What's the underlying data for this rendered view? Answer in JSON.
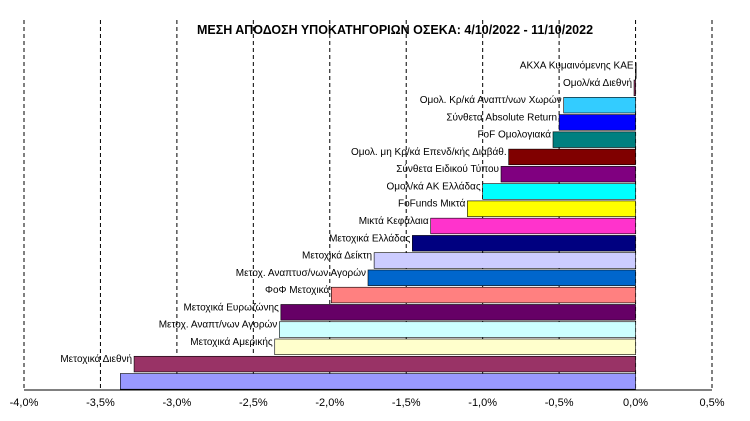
{
  "chart_data": {
    "type": "bar",
    "orientation": "horizontal",
    "title": "ΜΕΣΗ ΑΠΟΔΟΣΗ ΥΠΟΚΑΤΗΓΟΡΙΩΝ  ΟΣΕΚΑ:  4/10/2022  - 11/10/2022",
    "xlabel": "",
    "ylabel": "",
    "xlim": [
      -4.0,
      0.5
    ],
    "x_ticks": [
      "-4,0%",
      "-3,5%",
      "-3,0%",
      "-2,5%",
      "-2,0%",
      "-1,5%",
      "-1,0%",
      "-0,5%",
      "0,0%",
      "0,5%"
    ],
    "grid": "vertical-dashed",
    "legend": "none",
    "categories": [
      {
        "label": "ΑΚΧΑ Κυμαινόμενης ΚΑΕ",
        "value": 0.0,
        "color": "#9999ff"
      },
      {
        "label": "Ομολ/κά Διεθνή",
        "value": -0.01,
        "color": "#993366"
      },
      {
        "label": "Ομολ. Κρ/κά Αναπτ/νων Χωρών",
        "value": -0.47,
        "color": "#33ccff"
      },
      {
        "label": "Σύνθετα Absolute Return",
        "value": -0.5,
        "color": "#0000ff"
      },
      {
        "label": "FoF Ομολογιακά",
        "value": -0.54,
        "color": "#008080"
      },
      {
        "label": "Ομολ. μη Κρ/κά Επενδ/κής Διαβάθ.",
        "value": -0.83,
        "color": "#800000"
      },
      {
        "label": "Σύνθετα Ειδικού Τύπου",
        "value": -0.88,
        "color": "#800080"
      },
      {
        "label": "Ομολ/κά ΑΚ Ελλάδας",
        "value": -1.0,
        "color": "#00ffff"
      },
      {
        "label": "FoFunds Μικτά",
        "value": -1.1,
        "color": "#ffff00"
      },
      {
        "label": "Μικτά Κεφάλαια",
        "value": -1.34,
        "color": "#ff33cc"
      },
      {
        "label": "Μετοχικά Ελλάδας",
        "value": -1.46,
        "color": "#000080"
      },
      {
        "label": "Μετοχικά Δείκτη",
        "value": -1.71,
        "color": "#ccccff"
      },
      {
        "label": "Μετοχ. Αναπτυσ/νων Αγορών",
        "value": -1.75,
        "color": "#0066cc"
      },
      {
        "label": "ΦοΦ Μετοχικά",
        "value": -1.99,
        "color": "#ff8080"
      },
      {
        "label": "Μετοχικά Ευρωζώνης",
        "value": -2.32,
        "color": "#660066"
      },
      {
        "label": "Μετοχ. Αναπτ/νων Αγορών",
        "value": -2.33,
        "color": "#ccffff"
      },
      {
        "label": "Μετοχικά Αμερικής",
        "value": -2.36,
        "color": "#ffffcc"
      },
      {
        "label": "Μετοχικά Διεθνή",
        "value": -3.28,
        "color": "#993366"
      },
      {
        "label": "",
        "value": -3.37,
        "color": "#9999ff"
      }
    ]
  }
}
